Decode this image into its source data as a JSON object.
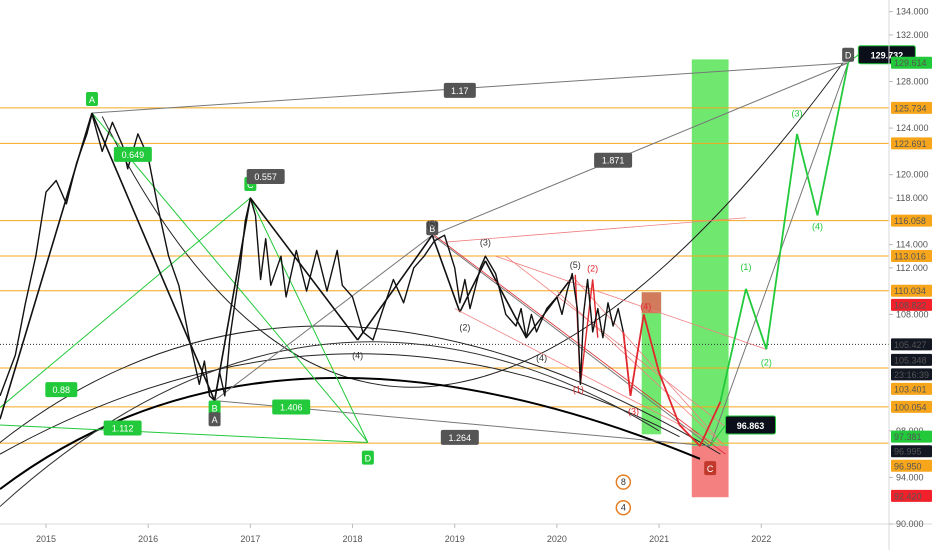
{
  "chart_data": {
    "type": "line",
    "title": "",
    "xlabel": "",
    "ylabel": "",
    "x_range": [
      2014.55,
      2023.25
    ],
    "ylim": [
      90.0,
      135.0
    ],
    "x_ticks": [
      {
        "label": "2015",
        "x": 2015.0
      },
      {
        "label": "2016",
        "x": 2016.0
      },
      {
        "label": "2017",
        "x": 2017.0
      },
      {
        "label": "2018",
        "x": 2018.0
      },
      {
        "label": "2019",
        "x": 2019.0
      },
      {
        "label": "2020",
        "x": 2020.0
      },
      {
        "label": "2021",
        "x": 2021.0
      },
      {
        "label": "2022",
        "x": 2022.0
      }
    ],
    "y_ticks": [
      {
        "label": "134.000",
        "y": 134
      },
      {
        "label": "132.000",
        "y": 132
      },
      {
        "label": "128.000",
        "y": 128
      },
      {
        "label": "124.000",
        "y": 124
      },
      {
        "label": "120.000",
        "y": 120
      },
      {
        "label": "118.000",
        "y": 118
      },
      {
        "label": "114.000",
        "y": 114
      },
      {
        "label": "112.000",
        "y": 112
      },
      {
        "label": "108.000",
        "y": 108
      },
      {
        "label": "98.000",
        "y": 98
      },
      {
        "label": "94.000",
        "y": 94
      },
      {
        "label": "90.000",
        "y": 90
      }
    ],
    "price_series": [
      [
        2014.55,
        101.0
      ],
      [
        2014.7,
        104.5
      ],
      [
        2014.8,
        109.0
      ],
      [
        2014.9,
        113.0
      ],
      [
        2015.0,
        118.5
      ],
      [
        2015.1,
        119.5
      ],
      [
        2015.2,
        117.5
      ],
      [
        2015.3,
        121.0
      ],
      [
        2015.4,
        123.5
      ],
      [
        2015.45,
        125.2
      ],
      [
        2015.55,
        122.0
      ],
      [
        2015.65,
        124.5
      ],
      [
        2015.75,
        122.5
      ],
      [
        2015.8,
        120.5
      ],
      [
        2015.9,
        123.5
      ],
      [
        2016.0,
        121.5
      ],
      [
        2016.1,
        117.0
      ],
      [
        2016.2,
        113.0
      ],
      [
        2016.3,
        110.5
      ],
      [
        2016.4,
        106.0
      ],
      [
        2016.45,
        104.0
      ],
      [
        2016.5,
        102.0
      ],
      [
        2016.55,
        104.0
      ],
      [
        2016.6,
        101.0
      ],
      [
        2016.65,
        100.6
      ],
      [
        2016.7,
        103.0
      ],
      [
        2016.75,
        101.0
      ],
      [
        2016.8,
        106.0
      ],
      [
        2016.85,
        109.0
      ],
      [
        2016.9,
        112.0
      ],
      [
        2016.95,
        116.0
      ],
      [
        2017.0,
        118.0
      ],
      [
        2017.05,
        116.5
      ],
      [
        2017.1,
        111.0
      ],
      [
        2017.15,
        114.5
      ],
      [
        2017.2,
        110.5
      ],
      [
        2017.3,
        113.0
      ],
      [
        2017.35,
        109.5
      ],
      [
        2017.45,
        113.5
      ],
      [
        2017.55,
        110.0
      ],
      [
        2017.65,
        113.5
      ],
      [
        2017.75,
        110.0
      ],
      [
        2017.85,
        113.5
      ],
      [
        2017.9,
        110.5
      ],
      [
        2018.0,
        109.5
      ],
      [
        2018.1,
        106.5
      ],
      [
        2018.2,
        105.8
      ],
      [
        2018.3,
        108.5
      ],
      [
        2018.4,
        111.0
      ],
      [
        2018.5,
        109.0
      ],
      [
        2018.6,
        112.0
      ],
      [
        2018.7,
        113.0
      ],
      [
        2018.8,
        114.3
      ],
      [
        2018.9,
        114.8
      ],
      [
        2019.0,
        112.0
      ],
      [
        2019.05,
        109.0
      ],
      [
        2019.1,
        111.0
      ],
      [
        2019.15,
        108.5
      ],
      [
        2019.25,
        112.0
      ],
      [
        2019.3,
        113.0
      ],
      [
        2019.4,
        111.5
      ],
      [
        2019.5,
        108.0
      ],
      [
        2019.6,
        107.0
      ],
      [
        2019.65,
        108.5
      ],
      [
        2019.7,
        106.0
      ],
      [
        2019.75,
        108.0
      ],
      [
        2019.8,
        106.5
      ],
      [
        2019.9,
        108.5
      ],
      [
        2020.0,
        109.5
      ],
      [
        2020.05,
        108.0
      ],
      [
        2020.1,
        110.0
      ],
      [
        2020.15,
        111.5
      ],
      [
        2020.2,
        108.5
      ],
      [
        2020.23,
        102.0
      ],
      [
        2020.26,
        108.0
      ],
      [
        2020.3,
        111.0
      ],
      [
        2020.35,
        106.5
      ],
      [
        2020.4,
        108.5
      ],
      [
        2020.45,
        106.0
      ],
      [
        2020.5,
        109.0
      ],
      [
        2020.55,
        107.0
      ],
      [
        2020.6,
        108.5
      ],
      [
        2020.65,
        106.5
      ]
    ],
    "projection_path": [
      [
        2020.65,
        106.5
      ],
      [
        2020.72,
        101.0
      ],
      [
        2020.85,
        108.0
      ],
      [
        2021.0,
        103.0
      ],
      [
        2021.2,
        98.5
      ],
      [
        2021.4,
        96.7
      ],
      [
        2021.6,
        100.5
      ],
      [
        2021.85,
        110.2
      ],
      [
        2022.05,
        105.0
      ],
      [
        2022.35,
        123.5
      ],
      [
        2022.55,
        116.5
      ],
      [
        2022.85,
        129.6
      ]
    ],
    "horizontal_levels": [
      {
        "label": "125.734",
        "y": 125.734,
        "color": "#f7a61c"
      },
      {
        "label": "122.691",
        "y": 122.691,
        "color": "#f7a61c"
      },
      {
        "label": "116.058",
        "y": 116.058,
        "color": "#f7a61c"
      },
      {
        "label": "113.016",
        "y": 113.016,
        "color": "#f7a61c"
      },
      {
        "label": "110.034",
        "y": 110.034,
        "color": "#f7a61c"
      },
      {
        "label": "103.401",
        "y": 103.401,
        "color": "#f7a61c"
      },
      {
        "label": "100.054",
        "y": 100.054,
        "color": "#f7a61c"
      },
      {
        "label": "96.950",
        "y": 96.95,
        "color": "#f7a61c"
      }
    ],
    "price_badges": [
      {
        "label": "129.614",
        "y": 129.614,
        "bg": "#22c93a",
        "fg": "#ffffff"
      },
      {
        "label": "125.734",
        "y": 125.734,
        "bg": "#f7a61c",
        "fg": "#000000"
      },
      {
        "label": "122.691",
        "y": 122.691,
        "bg": "#f7a61c",
        "fg": "#000000"
      },
      {
        "label": "116.058",
        "y": 116.058,
        "bg": "#f7a61c",
        "fg": "#000000"
      },
      {
        "label": "113.016",
        "y": 113.016,
        "bg": "#f7a61c",
        "fg": "#000000"
      },
      {
        "label": "110.034",
        "y": 110.034,
        "bg": "#f7a61c",
        "fg": "#000000"
      },
      {
        "label": "108.822",
        "y": 108.822,
        "bg": "#f0212a",
        "fg": "#ffffff"
      },
      {
        "label": "105.427",
        "y": 105.427,
        "bg": "#131722",
        "fg": "#ffffff"
      },
      {
        "label": "105.348",
        "y": 104.1,
        "bg": "#131722",
        "fg": "#ffffff"
      },
      {
        "label": "23:16:39",
        "y": 102.85,
        "bg": "#131722",
        "fg": "#ffffff"
      },
      {
        "label": "103.401",
        "y": 101.6,
        "bg": "#f7a61c",
        "fg": "#000000"
      },
      {
        "label": "100.054",
        "y": 100.054,
        "bg": "#f7a61c",
        "fg": "#000000"
      },
      {
        "label": "97.381",
        "y": 97.5,
        "bg": "#22c93a",
        "fg": "#ffffff"
      },
      {
        "label": "96.995",
        "y": 96.25,
        "bg": "#131722",
        "fg": "#ffffff"
      },
      {
        "label": "96.950",
        "y": 95.0,
        "bg": "#f7a61c",
        "fg": "#000000"
      },
      {
        "label": "92.420",
        "y": 92.42,
        "bg": "#f0212a",
        "fg": "#ffffff"
      }
    ],
    "callouts": [
      {
        "label": "129.732",
        "x": 2022.95,
        "y": 130.3
      },
      {
        "label": "96.863",
        "x": 2021.65,
        "y": 98.5
      }
    ],
    "point_labels": [
      {
        "label": "A",
        "x": 2015.45,
        "y": 126.5,
        "color": "#22c93a"
      },
      {
        "label": "B",
        "x": 2016.65,
        "y": 100.0,
        "color": "#22c93a"
      },
      {
        "label": "C",
        "x": 2017.0,
        "y": 119.2,
        "color": "#22c93a"
      },
      {
        "label": "D",
        "x": 2018.15,
        "y": 95.7,
        "color": "#22c93a"
      },
      {
        "label": "A",
        "x": 2016.65,
        "y": 99.0,
        "color": "#555555"
      },
      {
        "label": "B",
        "x": 2018.78,
        "y": 115.4,
        "color": "#555555"
      },
      {
        "label": "C",
        "x": 2021.5,
        "y": 94.8,
        "color": "#c0392b"
      },
      {
        "label": "D",
        "x": 2022.85,
        "y": 130.3,
        "color": "#555555"
      }
    ],
    "ratio_labels": [
      {
        "label": "1.17",
        "x": 2019.05,
        "y": 127.2,
        "color": "#555555"
      },
      {
        "label": "1.871",
        "x": 2020.55,
        "y": 121.2,
        "color": "#555555"
      },
      {
        "label": "0.557",
        "x": 2017.15,
        "y": 119.8,
        "color": "#555555"
      },
      {
        "label": "1.264",
        "x": 2019.05,
        "y": 97.4,
        "color": "#555555"
      },
      {
        "label": "0.649",
        "x": 2015.85,
        "y": 121.7,
        "color": "#22c93a"
      },
      {
        "label": "0.88",
        "x": 2015.15,
        "y": 101.5,
        "color": "#22c93a"
      },
      {
        "label": "1.406",
        "x": 2017.4,
        "y": 100.0,
        "color": "#22c93a"
      },
      {
        "label": "1.112",
        "x": 2015.75,
        "y": 98.2,
        "color": "#22c93a"
      }
    ],
    "wave_labels": [
      {
        "label": "(5)",
        "x": 2018.78,
        "y": 115.5,
        "color": "#333333"
      },
      {
        "label": "(3)",
        "x": 2019.3,
        "y": 113.9,
        "color": "#333333"
      },
      {
        "label": "(4)",
        "x": 2018.05,
        "y": 104.2,
        "color": "#333333"
      },
      {
        "label": "(2)",
        "x": 2019.1,
        "y": 106.6,
        "color": "#333333"
      },
      {
        "label": "(4)",
        "x": 2019.85,
        "y": 104.0,
        "color": "#333333"
      },
      {
        "label": "(5)",
        "x": 2020.18,
        "y": 112.0,
        "color": "#333333"
      },
      {
        "label": "(2)",
        "x": 2020.35,
        "y": 111.7,
        "color": "#e0282e"
      },
      {
        "label": "(1)",
        "x": 2020.21,
        "y": 101.3,
        "color": "#e0282e"
      },
      {
        "label": "(4)",
        "x": 2020.87,
        "y": 108.4,
        "color": "#e0282e"
      },
      {
        "label": "(3)",
        "x": 2020.75,
        "y": 99.4,
        "color": "#e0282e"
      },
      {
        "label": "(1)",
        "x": 2021.85,
        "y": 111.8,
        "color": "#22c93a"
      },
      {
        "label": "(2)",
        "x": 2022.05,
        "y": 103.6,
        "color": "#22c93a"
      },
      {
        "label": "(3)",
        "x": 2022.35,
        "y": 125.0,
        "color": "#22c93a"
      },
      {
        "label": "(4)",
        "x": 2022.55,
        "y": 115.3,
        "color": "#22c93a"
      }
    ],
    "zones": [
      {
        "x0": 2021.32,
        "x1": 2021.68,
        "y0": 96.7,
        "y1": 129.9,
        "color": "#40e040"
      },
      {
        "x0": 2021.32,
        "x1": 2021.68,
        "y0": 92.3,
        "y1": 96.7,
        "color": "#f25555"
      },
      {
        "x0": 2020.83,
        "x1": 2021.02,
        "y0": 97.7,
        "y1": 109.9,
        "color": "#40e040"
      },
      {
        "x0": 2020.83,
        "x1": 2021.02,
        "y0": 108.1,
        "y1": 109.9,
        "color": "#f25555"
      }
    ],
    "watermark_icons": [
      {
        "label": "8",
        "x": 2020.65,
        "y": 93.6
      },
      {
        "label": "4",
        "x": 2020.65,
        "y": 91.4
      }
    ],
    "grid": false,
    "legend": "none"
  }
}
